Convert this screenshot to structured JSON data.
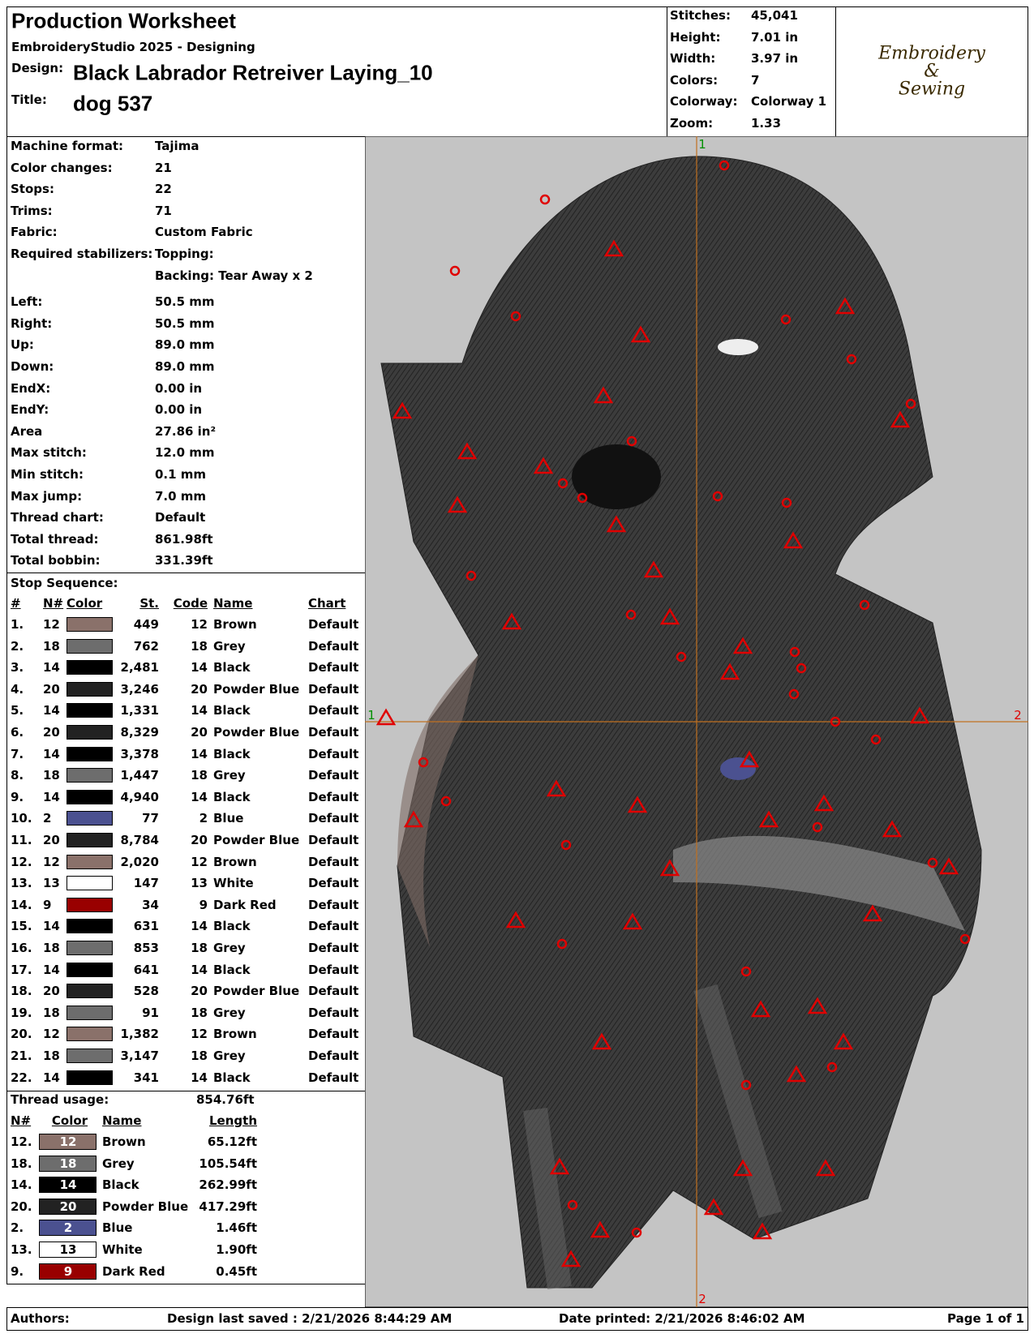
{
  "header": {
    "title": "Production Worksheet",
    "subtitle": "EmbroideryStudio 2025 - Designing",
    "design_label": "Design:",
    "design": "Black Labrador Retreiver Laying_10",
    "title_label": "Title:",
    "title_value": "dog 537"
  },
  "stats": [
    [
      "Stitches:",
      "45,041"
    ],
    [
      "Height:",
      "7.01 in"
    ],
    [
      "Width:",
      "3.97 in"
    ],
    [
      "Colors:",
      "7"
    ],
    [
      "Colorway:",
      "Colorway 1"
    ],
    [
      "Zoom:",
      "1.33"
    ]
  ],
  "logo": [
    "Embroidery",
    "&",
    "Sewing"
  ],
  "machine_info": [
    {
      "label": "Machine format:",
      "value": "Tajima"
    },
    {
      "label": "Color changes:",
      "value": "21"
    },
    {
      "label": "Stops:",
      "value": "22"
    },
    {
      "label": "Trims:",
      "value": "71"
    },
    {
      "label": "Fabric:",
      "value": "Custom Fabric"
    },
    {
      "label": "Required stabilizers:",
      "value": "Topping:"
    },
    {
      "value": "Backing: Tear Away x 2"
    },
    {
      "label": "Left:",
      "value": "50.5 mm"
    },
    {
      "label": "Right:",
      "value": "50.5 mm"
    },
    {
      "label": "Up:",
      "value": "89.0 mm"
    },
    {
      "label": "Down:",
      "value": "89.0 mm"
    },
    {
      "label": "EndX:",
      "value": "0.00 in"
    },
    {
      "label": "EndY:",
      "value": "0.00 in"
    },
    {
      "label": "Area",
      "value": "27.86 in²"
    },
    {
      "label": "Max stitch:",
      "value": "12.0 mm"
    },
    {
      "label": "Min stitch:",
      "value": "0.1 mm"
    },
    {
      "label": "Max jump:",
      "value": "7.0 mm"
    },
    {
      "label": "Thread chart:",
      "value": "Default"
    },
    {
      "label": "Total thread:",
      "value": "861.98ft"
    },
    {
      "label": "Total bobbin:",
      "value": "331.39ft"
    }
  ],
  "stop_sequence": {
    "title": "Stop Sequence:",
    "headers": [
      "#",
      "N#",
      "Color",
      "St.",
      "Code",
      "Name",
      "Chart"
    ],
    "rows": [
      {
        "num": "1.",
        "n": "12",
        "color": "#8a716a",
        "st": "449",
        "code": "12",
        "name": "Brown",
        "chart": "Default"
      },
      {
        "num": "2.",
        "n": "18",
        "color": "#6d6d6d",
        "st": "762",
        "code": "18",
        "name": "Grey",
        "chart": "Default"
      },
      {
        "num": "3.",
        "n": "14",
        "color": "#000000",
        "st": "2,481",
        "code": "14",
        "name": "Black",
        "chart": "Default"
      },
      {
        "num": "4.",
        "n": "20",
        "color": "#222222",
        "st": "3,246",
        "code": "20",
        "name": "Powder Blue",
        "chart": "Default"
      },
      {
        "num": "5.",
        "n": "14",
        "color": "#000000",
        "st": "1,331",
        "code": "14",
        "name": "Black",
        "chart": "Default"
      },
      {
        "num": "6.",
        "n": "20",
        "color": "#222222",
        "st": "8,329",
        "code": "20",
        "name": "Powder Blue",
        "chart": "Default"
      },
      {
        "num": "7.",
        "n": "14",
        "color": "#000000",
        "st": "3,378",
        "code": "14",
        "name": "Black",
        "chart": "Default"
      },
      {
        "num": "8.",
        "n": "18",
        "color": "#6d6d6d",
        "st": "1,447",
        "code": "18",
        "name": "Grey",
        "chart": "Default"
      },
      {
        "num": "9.",
        "n": "14",
        "color": "#000000",
        "st": "4,940",
        "code": "14",
        "name": "Black",
        "chart": "Default"
      },
      {
        "num": "10.",
        "n": "2",
        "color": "#4b5190",
        "st": "77",
        "code": "2",
        "name": "Blue",
        "chart": "Default"
      },
      {
        "num": "11.",
        "n": "20",
        "color": "#222222",
        "st": "8,784",
        "code": "20",
        "name": "Powder Blue",
        "chart": "Default"
      },
      {
        "num": "12.",
        "n": "12",
        "color": "#8a716a",
        "st": "2,020",
        "code": "12",
        "name": "Brown",
        "chart": "Default"
      },
      {
        "num": "13.",
        "n": "13",
        "color": "#ffffff",
        "st": "147",
        "code": "13",
        "name": "White",
        "chart": "Default"
      },
      {
        "num": "14.",
        "n": "9",
        "color": "#990000",
        "st": "34",
        "code": "9",
        "name": "Dark Red",
        "chart": "Default"
      },
      {
        "num": "15.",
        "n": "14",
        "color": "#000000",
        "st": "631",
        "code": "14",
        "name": "Black",
        "chart": "Default"
      },
      {
        "num": "16.",
        "n": "18",
        "color": "#6d6d6d",
        "st": "853",
        "code": "18",
        "name": "Grey",
        "chart": "Default"
      },
      {
        "num": "17.",
        "n": "14",
        "color": "#000000",
        "st": "641",
        "code": "14",
        "name": "Black",
        "chart": "Default"
      },
      {
        "num": "18.",
        "n": "20",
        "color": "#222222",
        "st": "528",
        "code": "20",
        "name": "Powder Blue",
        "chart": "Default"
      },
      {
        "num": "19.",
        "n": "18",
        "color": "#6d6d6d",
        "st": "91",
        "code": "18",
        "name": "Grey",
        "chart": "Default"
      },
      {
        "num": "20.",
        "n": "12",
        "color": "#8a716a",
        "st": "1,382",
        "code": "12",
        "name": "Brown",
        "chart": "Default"
      },
      {
        "num": "21.",
        "n": "18",
        "color": "#6d6d6d",
        "st": "3,147",
        "code": "18",
        "name": "Grey",
        "chart": "Default"
      },
      {
        "num": "22.",
        "n": "14",
        "color": "#000000",
        "st": "341",
        "code": "14",
        "name": "Black",
        "chart": "Default"
      }
    ]
  },
  "thread_usage": {
    "title": "Thread usage:",
    "total": "854.76ft",
    "headers": [
      "N#",
      "Color",
      "Name",
      "Length"
    ],
    "rows": [
      {
        "num": "12.",
        "label": "12",
        "color": "#8a716a",
        "name": "Brown",
        "length": "65.12ft"
      },
      {
        "num": "18.",
        "label": "18",
        "color": "#6d6d6d",
        "name": "Grey",
        "length": "105.54ft"
      },
      {
        "num": "14.",
        "label": "14",
        "color": "#000000",
        "name": "Black",
        "length": "262.99ft"
      },
      {
        "num": "20.",
        "label": "20",
        "color": "#222222",
        "name": "Powder Blue",
        "length": "417.29ft"
      },
      {
        "num": "2.",
        "label": "2",
        "color": "#4b5190",
        "name": "Blue",
        "length": "1.46ft"
      },
      {
        "num": "13.",
        "label": "13",
        "color": "#ffffff",
        "name": "White",
        "length": "1.90ft"
      },
      {
        "num": "9.",
        "label": "9",
        "color": "#990000",
        "name": "Dark Red",
        "length": "0.45ft"
      }
    ]
  },
  "design_view": {
    "axis_labels": [
      "1",
      "2",
      "1",
      "2"
    ]
  },
  "footer": {
    "authors": "Authors:",
    "saved": "Design last saved : 2/21/2026 8:44:29 AM",
    "printed": "Date printed: 2/21/2026 8:46:02 AM",
    "page": "Page 1 of 1"
  }
}
